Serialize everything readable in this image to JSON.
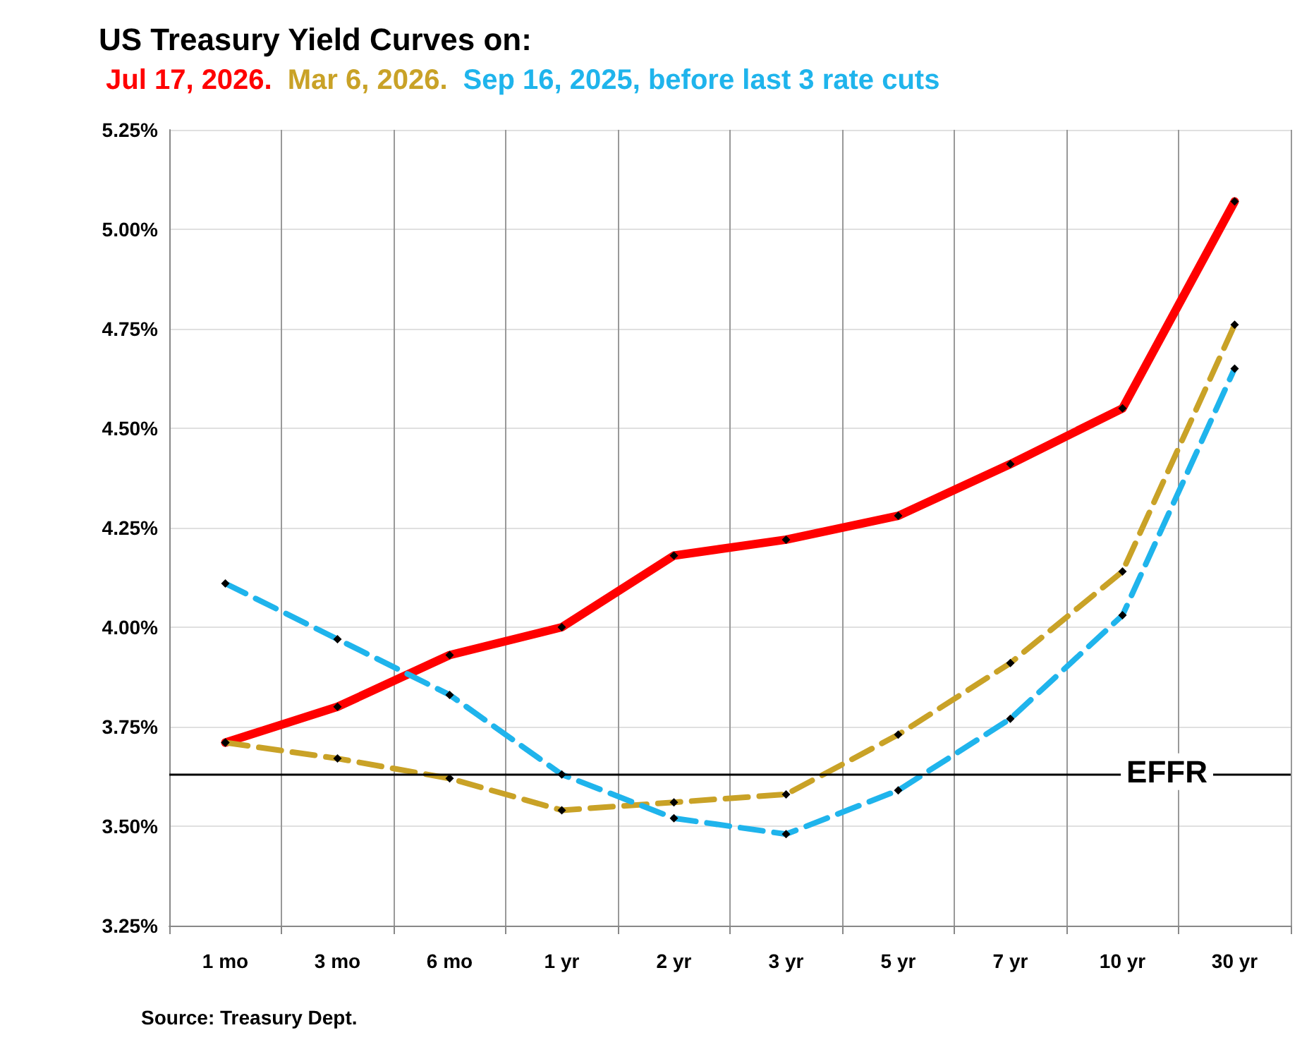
{
  "chart_data": {
    "type": "line",
    "title": "US Treasury Yield Curves on:",
    "categories": [
      "1 mo",
      "3 mo",
      "6 mo",
      "1 yr",
      "2 yr",
      "3 yr",
      "5 yr",
      "7 yr",
      "10 yr",
      "30 yr"
    ],
    "series": [
      {
        "name": "Jul 17, 2026.",
        "color": "#ff0000",
        "line_style": "solid",
        "values": [
          3.71,
          3.8,
          3.93,
          4.0,
          4.18,
          4.22,
          4.28,
          4.41,
          4.55,
          5.07
        ]
      },
      {
        "name": "Mar 6, 2026.",
        "color": "#c9a227",
        "line_style": "dashed",
        "values": [
          3.71,
          3.67,
          3.62,
          3.54,
          3.56,
          3.58,
          3.73,
          3.91,
          4.14,
          4.76
        ]
      },
      {
        "name": "Sep 16, 2025, before last 3 rate cuts",
        "color": "#1fb4ec",
        "line_style": "dashed",
        "values": [
          4.11,
          3.97,
          3.83,
          3.63,
          3.52,
          3.48,
          3.59,
          3.77,
          4.03,
          4.65
        ]
      }
    ],
    "ylim": [
      3.25,
      5.25
    ],
    "yticks": [
      {
        "value": 3.25,
        "label": "3.25%"
      },
      {
        "value": 3.5,
        "label": "3.50%"
      },
      {
        "value": 3.75,
        "label": "3.75%"
      },
      {
        "value": 4.0,
        "label": "4.00%"
      },
      {
        "value": 4.25,
        "label": "4.25%"
      },
      {
        "value": 4.5,
        "label": "4.50%"
      },
      {
        "value": 4.75,
        "label": "4.75%"
      },
      {
        "value": 5.0,
        "label": "5.00%"
      },
      {
        "value": 5.25,
        "label": "5.25%"
      }
    ],
    "ref_lines": [
      {
        "axis": "y",
        "value": 3.63,
        "label": "EFFR",
        "color": "#000000"
      }
    ],
    "annotations": [
      "Source: Treasury Dept."
    ],
    "grid": true,
    "legend": "top left",
    "marker": "diamond"
  }
}
